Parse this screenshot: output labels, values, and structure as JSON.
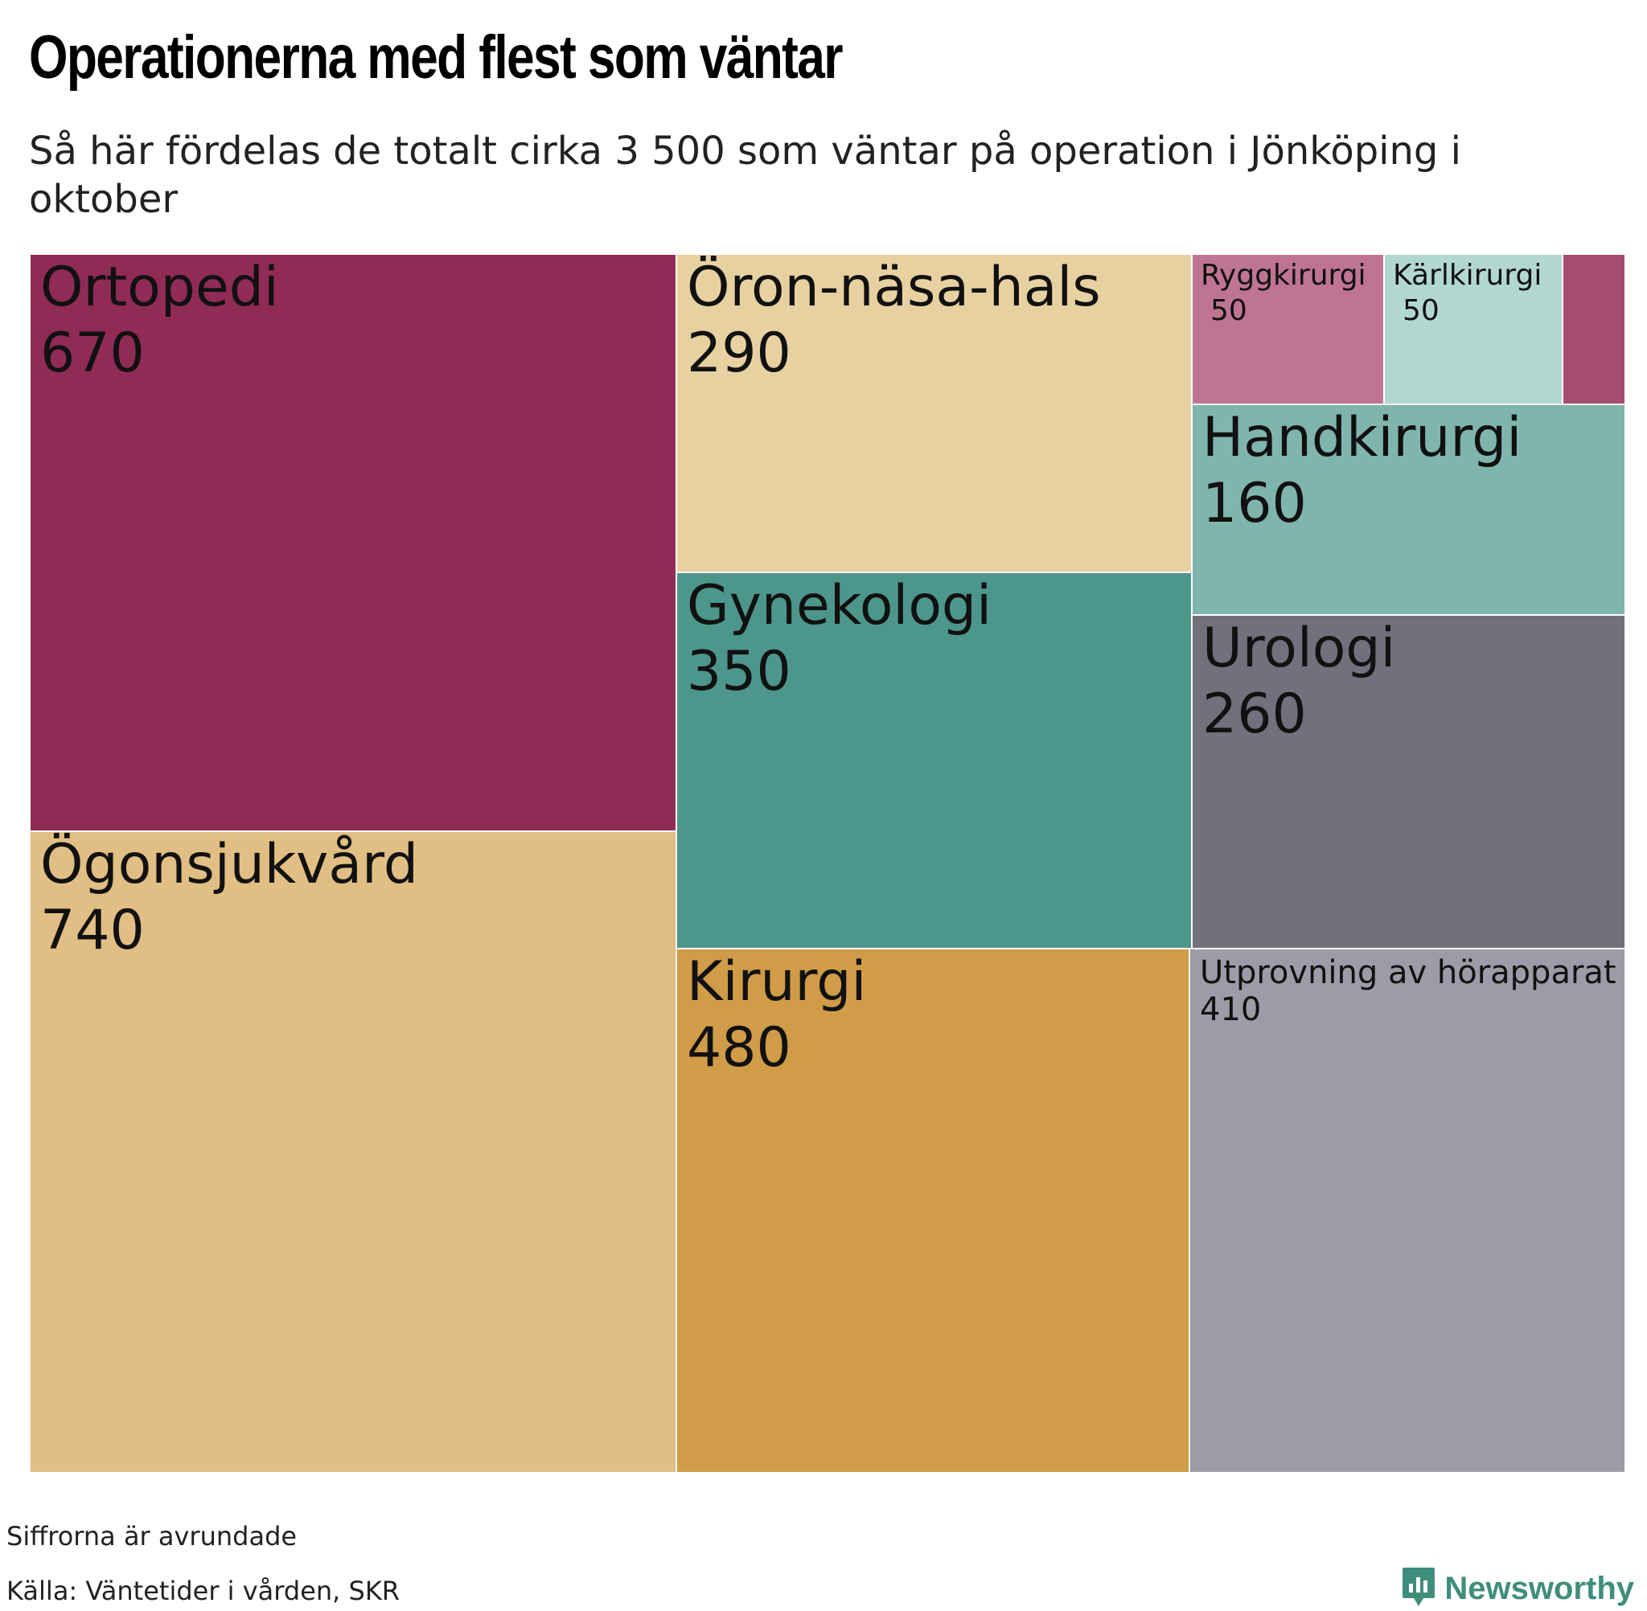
{
  "title": "Operationerna med flest som väntar",
  "subtitle": "Så här fördelas de totalt cirka 3 500 som väntar på operation i Jönköping i oktober",
  "chart_data": {
    "type": "treemap",
    "items": [
      {
        "label": "Ortopedi",
        "value": 670,
        "display": "670",
        "color": "#902b56"
      },
      {
        "label": "Ögonsjukvård",
        "value": 740,
        "display": "740",
        "color": "#e1be83"
      },
      {
        "label": "Öron-näsa-hals",
        "value": 290,
        "display": "290",
        "color": "#e8d1a1"
      },
      {
        "label": "Gynekologi",
        "value": 350,
        "display": "350",
        "color": "#4d968b"
      },
      {
        "label": "Kirurgi",
        "value": 480,
        "display": "480",
        "color": "#d09c48"
      },
      {
        "label": "Ryggkirurgi",
        "value": 50,
        "display": "50",
        "color": "#bf7592"
      },
      {
        "label": "Kärlkirurgi",
        "value": 50,
        "display": "50",
        "color": "#b2d7d1"
      },
      {
        "label": "",
        "value": 40,
        "display": "",
        "color": "#a54d70"
      },
      {
        "label": "Handkirurgi",
        "value": 160,
        "display": "160",
        "color": "#7fb5ad"
      },
      {
        "label": "Urologi",
        "value": 260,
        "display": "260",
        "color": "#72707c"
      },
      {
        "label": "Utprovning av hörapparat",
        "value": 410,
        "display": "410",
        "color": "#9d9ba7"
      }
    ]
  },
  "notes": {
    "rounded": "Siffrorna är avrundade",
    "source": "Källa: Väntetider i vården, SKR"
  },
  "brand": {
    "name": "Newsworthy",
    "logo_icon": "newsworthy-logo-icon",
    "color": "#3f8e7c"
  }
}
